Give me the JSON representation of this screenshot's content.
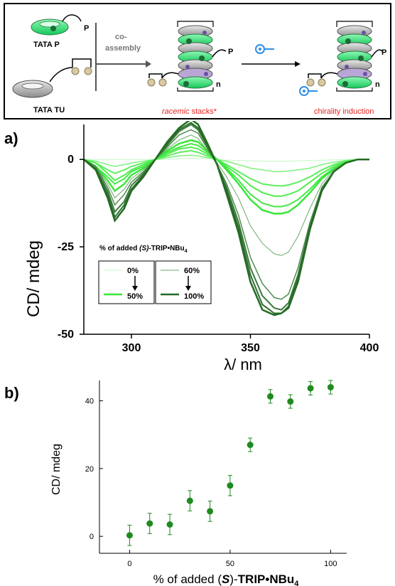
{
  "scheme": {
    "tata_p_label": "TATA P",
    "tata_tu_label": "TATA TU",
    "coassembly_label_1": "co-",
    "coassembly_label_2": "assembly",
    "racemic_label": "racemic stacks*",
    "racemic_word": "racemic",
    "stacks_word": "stacks*",
    "chirality_label": "chirality induction",
    "p_label": "P",
    "n_label": "n",
    "colors": {
      "green": "#35e07a",
      "gray": "#b9b9b9",
      "red": "#e8231f",
      "blue": "#2f8fe8"
    }
  },
  "panel_labels": {
    "a": "a)",
    "b": "b)"
  },
  "chart_data": [
    {
      "type": "line",
      "panel": "a",
      "xlabel": "λ/ nm",
      "ylabel": "CD/ mdeg",
      "xlim": [
        280,
        400
      ],
      "ylim": [
        -50,
        10
      ],
      "xticks": [
        300,
        350,
        400
      ],
      "yticks": [
        0,
        -25,
        -50
      ],
      "legend_title_prefix": "% of added ",
      "legend_title_s": "(S)",
      "legend_title_suffix": "-TRIP•NBu",
      "legend_title_sub": "4",
      "legend_left": {
        "from": "0%",
        "to": "50%"
      },
      "legend_right": {
        "from": "60%",
        "to": "100%"
      },
      "x": [
        280,
        285,
        290,
        293,
        297,
        300,
        305,
        310,
        315,
        320,
        325,
        328,
        332,
        336,
        340,
        345,
        350,
        355,
        360,
        363,
        366,
        370,
        375,
        380,
        385,
        390,
        395,
        400
      ],
      "series": [
        {
          "color": "#c5f7c5",
          "width": 1,
          "values": [
            0,
            0,
            0,
            0,
            0,
            0,
            0,
            0,
            0,
            0.2,
            0.4,
            0.3,
            0.2,
            0,
            -0.2,
            -0.3,
            -0.4,
            -0.5,
            -0.5,
            -0.5,
            -0.5,
            -0.4,
            -0.3,
            -0.2,
            -0.1,
            0,
            0,
            0
          ]
        },
        {
          "color": "#7ff07f",
          "width": 1.5,
          "values": [
            0,
            -0.5,
            -1.5,
            -2,
            -1.5,
            -1,
            -0.5,
            0,
            0.5,
            1,
            1.2,
            1,
            0.5,
            0,
            -0.5,
            -1.5,
            -2.5,
            -3,
            -3.5,
            -3.5,
            -3.3,
            -3,
            -2.5,
            -1.5,
            -0.8,
            -0.3,
            0,
            0
          ]
        },
        {
          "color": "#5fee5f",
          "width": 2,
          "values": [
            0,
            -1,
            -3,
            -4,
            -3,
            -2,
            -1,
            0,
            1,
            2,
            2.5,
            2,
            1,
            0,
            -1.5,
            -3.5,
            -5.5,
            -7,
            -7.5,
            -7.6,
            -7.3,
            -6.5,
            -5,
            -3,
            -1.5,
            -0.5,
            0,
            0
          ]
        },
        {
          "color": "#4fec4f",
          "width": 2,
          "values": [
            0,
            -1,
            -4,
            -6,
            -4.5,
            -3,
            -1.5,
            0,
            1.5,
            3,
            3.5,
            3,
            1.5,
            0,
            -2,
            -4.5,
            -7.5,
            -9.5,
            -10.5,
            -10.5,
            -10,
            -9,
            -6.5,
            -4,
            -2,
            -0.7,
            0,
            0
          ]
        },
        {
          "color": "#43e843",
          "width": 2,
          "values": [
            0,
            -2,
            -5,
            -7,
            -5.5,
            -3.5,
            -2,
            0,
            2,
            3.5,
            4.5,
            4,
            2,
            0,
            -2.5,
            -6,
            -10,
            -12.5,
            -13.5,
            -13.5,
            -13,
            -11.5,
            -8.5,
            -5,
            -2.5,
            -0.8,
            0,
            0
          ]
        },
        {
          "color": "#3ae63a",
          "width": 2.5,
          "values": [
            0,
            -2,
            -6,
            -9,
            -7,
            -4.5,
            -2.5,
            0,
            2.5,
            4.5,
            5.5,
            5,
            2.5,
            0,
            -3,
            -7,
            -11.5,
            -14.5,
            -15.5,
            -15.5,
            -15,
            -13,
            -9.5,
            -5.5,
            -2.8,
            -1,
            0,
            0
          ]
        },
        {
          "color": "#6aa86a",
          "width": 1,
          "values": [
            0,
            -2,
            -7,
            -11,
            -8.5,
            -5.5,
            -3,
            0,
            3,
            5.5,
            7,
            6,
            2.5,
            -1,
            -5,
            -11,
            -19,
            -24,
            -27,
            -27.5,
            -26.5,
            -22,
            -14,
            -7,
            -3,
            -1,
            0,
            0
          ]
        },
        {
          "color": "#4f8c4f",
          "width": 1.5,
          "values": [
            0,
            -2,
            -8,
            -13,
            -10,
            -6.5,
            -3.5,
            0,
            3.5,
            7,
            8.5,
            7.5,
            3,
            -1.5,
            -7,
            -16,
            -28,
            -35.5,
            -39.5,
            -40,
            -38.5,
            -31,
            -18,
            -8,
            -3.5,
            -1,
            0,
            0
          ]
        },
        {
          "color": "#3b7a3b",
          "width": 2,
          "values": [
            0,
            -2.5,
            -9,
            -15,
            -12,
            -7.5,
            -4,
            0,
            4,
            8,
            10,
            8.5,
            3.5,
            -1.5,
            -8,
            -18,
            -31,
            -39,
            -42.5,
            -43,
            -41,
            -33,
            -19,
            -8.5,
            -3.5,
            -1,
            0,
            0
          ]
        },
        {
          "color": "#2e6e2e",
          "width": 2,
          "values": [
            0,
            -3,
            -10,
            -16.5,
            -13,
            -8.5,
            -4.5,
            0,
            4.5,
            8.5,
            10.5,
            9,
            4,
            -1.5,
            -9,
            -19.5,
            -33,
            -41.5,
            -44,
            -44,
            -42,
            -34,
            -19.5,
            -9,
            -3.5,
            -1,
            0,
            0
          ]
        },
        {
          "color": "#236a23",
          "width": 2.5,
          "values": [
            0,
            -3,
            -11,
            -17.5,
            -14,
            -9,
            -5,
            0,
            5,
            9,
            11.5,
            10,
            4.5,
            -1.5,
            -10,
            -21,
            -35,
            -43,
            -44.5,
            -44,
            -42.5,
            -35,
            -20,
            -9,
            -3.5,
            -1,
            0,
            0
          ]
        }
      ]
    },
    {
      "type": "scatter",
      "panel": "b",
      "xlabel_prefix": "% of added (",
      "xlabel_s": "S",
      "xlabel_mid": ")-",
      "xlabel_bold": "TRIP•NBu",
      "xlabel_sub": "4",
      "ylabel": "CD/ mdeg",
      "xlim": [
        -15,
        108
      ],
      "ylim": [
        -5,
        46
      ],
      "xticks": [
        0,
        50,
        100
      ],
      "yticks": [
        0,
        20,
        40
      ],
      "color": "#1f8a1f",
      "x": [
        0,
        10,
        20,
        30,
        40,
        50,
        60,
        70,
        80,
        90,
        100
      ],
      "y": [
        0.3,
        3.8,
        3.5,
        10.5,
        7.4,
        15.0,
        27.0,
        41.3,
        39.8,
        43.7,
        44.0
      ],
      "err": [
        3.0,
        3.0,
        3.0,
        3.0,
        3.0,
        3.0,
        2.0,
        2.0,
        2.0,
        2.0,
        2.0
      ]
    }
  ]
}
